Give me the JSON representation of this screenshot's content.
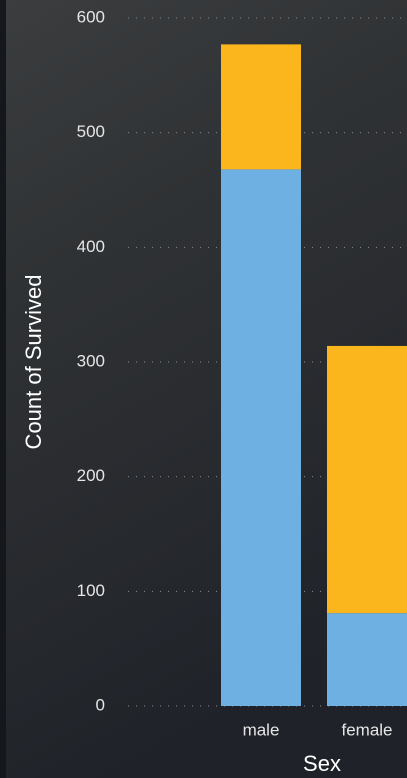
{
  "chart_data": {
    "type": "stacked-bar",
    "x_label": "Sex",
    "y_label": "Count of Survived",
    "categories": [
      "male",
      "female"
    ],
    "series": [
      {
        "color": "#6fb0e2",
        "values": [
          468,
          81
        ]
      },
      {
        "color": "#fbb61d",
        "values": [
          109,
          233
        ]
      }
    ],
    "ylim": [
      0,
      600
    ],
    "yticks": [
      0,
      100,
      200,
      300,
      400,
      500,
      600
    ],
    "grid": true
  }
}
